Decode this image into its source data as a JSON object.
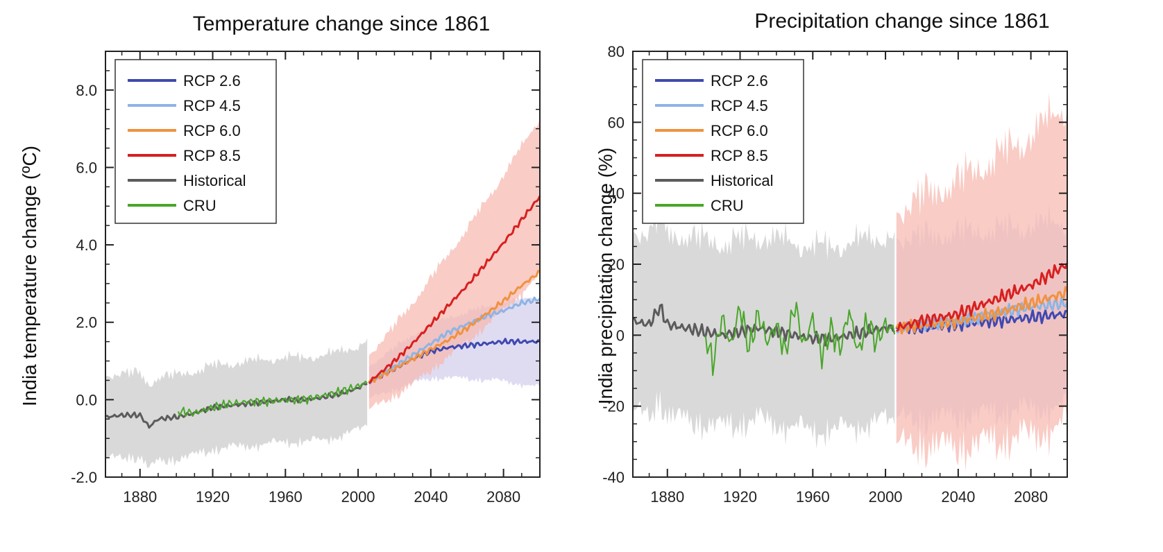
{
  "colors": {
    "RCP 2.6": "#3f49b0",
    "RCP 4.5": "#8db4e6",
    "RCP 6.0": "#f0923f",
    "RCP 8.5": "#d81f1f",
    "Historical": "#5b5b5b",
    "CRU": "#4aa62a",
    "hist_band": "#d9d9d9",
    "rcp85_band": "#f6b7ae",
    "rcp26_band": "#c9c4ea"
  },
  "chart_data": [
    {
      "type": "line",
      "title": "Temperature change since 1861",
      "xlabel": "",
      "ylabel": "India temperature change (ºC)",
      "xlim": [
        1861,
        2100
      ],
      "ylim": [
        -2,
        9
      ],
      "xticks": [
        "1880",
        "1920",
        "1960",
        "2000",
        "2040",
        "2080"
      ],
      "yticks": [
        "-2.0",
        "0.0",
        "2.0",
        "4.0",
        "6.0",
        "8.0"
      ],
      "legend": [
        "RCP 2.6",
        "RCP 4.5",
        "RCP 6.0",
        "RCP 8.5",
        "Historical",
        "CRU"
      ],
      "legend_position": "top-left",
      "series": [
        {
          "name": "Historical",
          "x": [
            1861,
            1870,
            1880,
            1885,
            1890,
            1900,
            1910,
            1920,
            1930,
            1940,
            1950,
            1960,
            1970,
            1980,
            1990,
            2000,
            2005
          ],
          "values": [
            -0.45,
            -0.4,
            -0.4,
            -0.7,
            -0.5,
            -0.45,
            -0.35,
            -0.2,
            -0.15,
            -0.1,
            -0.05,
            0.0,
            0.0,
            0.05,
            0.15,
            0.3,
            0.45
          ]
        },
        {
          "name": "CRU",
          "x": [
            1901,
            1910,
            1920,
            1930,
            1940,
            1950,
            1960,
            1970,
            1980,
            1990,
            2000,
            2005
          ],
          "values": [
            -0.3,
            -0.35,
            -0.2,
            -0.1,
            -0.05,
            -0.05,
            0.0,
            0.0,
            0.1,
            0.2,
            0.35,
            0.45
          ]
        },
        {
          "name": "RCP 2.6",
          "x": [
            2006,
            2020,
            2030,
            2040,
            2050,
            2060,
            2070,
            2080,
            2090,
            2100
          ],
          "values": [
            0.45,
            0.8,
            1.05,
            1.25,
            1.35,
            1.4,
            1.45,
            1.5,
            1.5,
            1.5
          ]
        },
        {
          "name": "RCP 4.5",
          "x": [
            2006,
            2020,
            2030,
            2040,
            2050,
            2060,
            2070,
            2080,
            2090,
            2100
          ],
          "values": [
            0.45,
            0.85,
            1.15,
            1.45,
            1.75,
            1.95,
            2.15,
            2.3,
            2.5,
            2.6
          ]
        },
        {
          "name": "RCP 6.0",
          "x": [
            2006,
            2020,
            2030,
            2040,
            2050,
            2060,
            2070,
            2080,
            2090,
            2100
          ],
          "values": [
            0.45,
            0.8,
            1.05,
            1.3,
            1.55,
            1.85,
            2.2,
            2.55,
            2.95,
            3.3
          ]
        },
        {
          "name": "RCP 8.5",
          "x": [
            2006,
            2020,
            2030,
            2040,
            2050,
            2060,
            2070,
            2080,
            2090,
            2100
          ],
          "values": [
            0.45,
            1.0,
            1.45,
            1.95,
            2.45,
            2.95,
            3.5,
            4.05,
            4.65,
            5.25
          ]
        }
      ]
    },
    {
      "type": "line",
      "title": "Precipitation change since 1861",
      "xlabel": "",
      "ylabel": "India precipitation change (%)",
      "xlim": [
        1861,
        2100
      ],
      "ylim": [
        -40,
        80
      ],
      "xticks": [
        "1880",
        "1920",
        "1960",
        "2000",
        "2040",
        "2080"
      ],
      "yticks": [
        "-40",
        "-20",
        "0",
        "20",
        "40",
        "60",
        "80"
      ],
      "legend": [
        "RCP 2.6",
        "RCP 4.5",
        "RCP 6.0",
        "RCP 8.5",
        "Historical",
        "CRU"
      ],
      "legend_position": "top-left",
      "series": [
        {
          "name": "Historical",
          "x": [
            1861,
            1870,
            1876,
            1880,
            1890,
            1900,
            1910,
            1920,
            1930,
            1940,
            1950,
            1960,
            1970,
            1980,
            1990,
            2000,
            2005
          ],
          "values": [
            4,
            3,
            8,
            3,
            2,
            1,
            0,
            1,
            2,
            1,
            0,
            -1,
            -1,
            0,
            1,
            2,
            2
          ]
        },
        {
          "name": "CRU",
          "x": [
            1901,
            1905,
            1910,
            1915,
            1920,
            1925,
            1930,
            1935,
            1940,
            1945,
            1950,
            1955,
            1960,
            1965,
            1970,
            1975,
            1980,
            1985,
            1990,
            1995,
            2000,
            2005
          ],
          "values": [
            0,
            -8,
            5,
            -3,
            8,
            -4,
            6,
            -2,
            3,
            -5,
            9,
            -3,
            5,
            -6,
            2,
            -4,
            7,
            -5,
            4,
            -2,
            3,
            1
          ]
        },
        {
          "name": "RCP 2.6",
          "x": [
            2006,
            2020,
            2040,
            2060,
            2080,
            2100
          ],
          "values": [
            2,
            2,
            3,
            4,
            5,
            6
          ]
        },
        {
          "name": "RCP 4.5",
          "x": [
            2006,
            2020,
            2040,
            2060,
            2080,
            2100
          ],
          "values": [
            2,
            3,
            4,
            6,
            8,
            9
          ]
        },
        {
          "name": "RCP 6.0",
          "x": [
            2006,
            2020,
            2040,
            2060,
            2080,
            2100
          ],
          "values": [
            2,
            3,
            4,
            6,
            9,
            12
          ]
        },
        {
          "name": "RCP 8.5",
          "x": [
            2006,
            2020,
            2030,
            2040,
            2050,
            2060,
            2070,
            2080,
            2090,
            2100
          ],
          "values": [
            2,
            4,
            5,
            6,
            8,
            10,
            12,
            14,
            17,
            20
          ]
        }
      ]
    }
  ]
}
